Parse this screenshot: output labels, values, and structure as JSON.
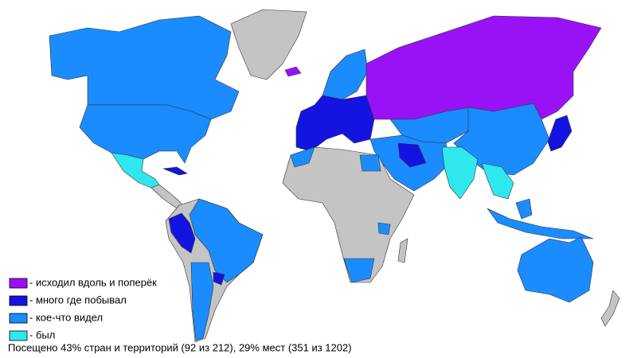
{
  "legend": [
    {
      "label": "- исходил вдоль и поперёк",
      "color": "#9912f5"
    },
    {
      "label": "- много где побывал",
      "color": "#1414e0"
    },
    {
      "label": "- кое-что видел",
      "color": "#1a8cff"
    },
    {
      "label": "- был",
      "color": "#2ee8ee"
    }
  ],
  "caption": "Посещено 43% стран и территорий (92 из 212), 29% мест (351 из 1202)"
}
